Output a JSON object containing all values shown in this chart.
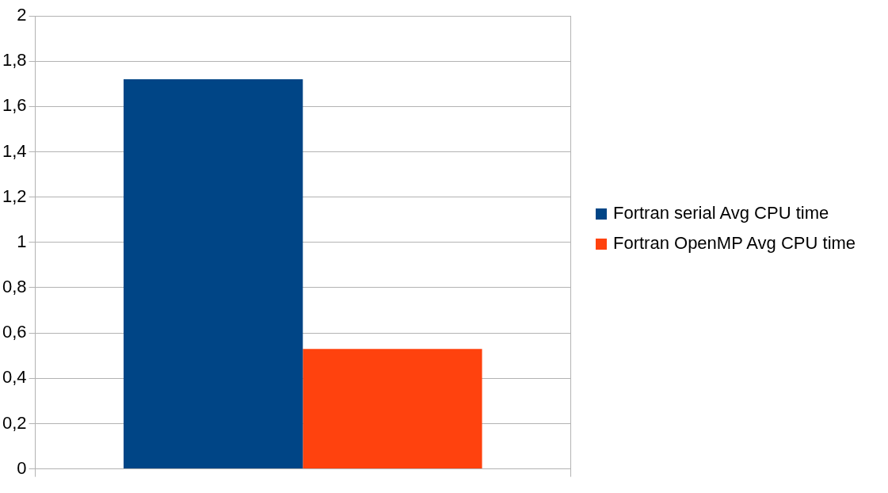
{
  "chart_data": {
    "type": "bar",
    "categories": [
      null
    ],
    "series": [
      {
        "name": "Fortran serial Avg CPU time",
        "color": "#004586",
        "values": [
          1.72
        ]
      },
      {
        "name": "Fortran OpenMP Avg CPU time",
        "color": "#ff420e",
        "values": [
          0.53
        ]
      }
    ],
    "ylim": [
      0,
      2
    ],
    "yticks": [
      {
        "value": 0,
        "label": "0"
      },
      {
        "value": 0.2,
        "label": "0,2"
      },
      {
        "value": 0.4,
        "label": "0,4"
      },
      {
        "value": 0.6,
        "label": "0,6"
      },
      {
        "value": 0.8,
        "label": "0,8"
      },
      {
        "value": 1,
        "label": "1"
      },
      {
        "value": 1.2,
        "label": "1,2"
      },
      {
        "value": 1.4,
        "label": "1,4"
      },
      {
        "value": 1.6,
        "label": "1,6"
      },
      {
        "value": 1.8,
        "label": "1,8"
      },
      {
        "value": 2,
        "label": "2"
      }
    ],
    "grid": "y",
    "legend": "right"
  }
}
